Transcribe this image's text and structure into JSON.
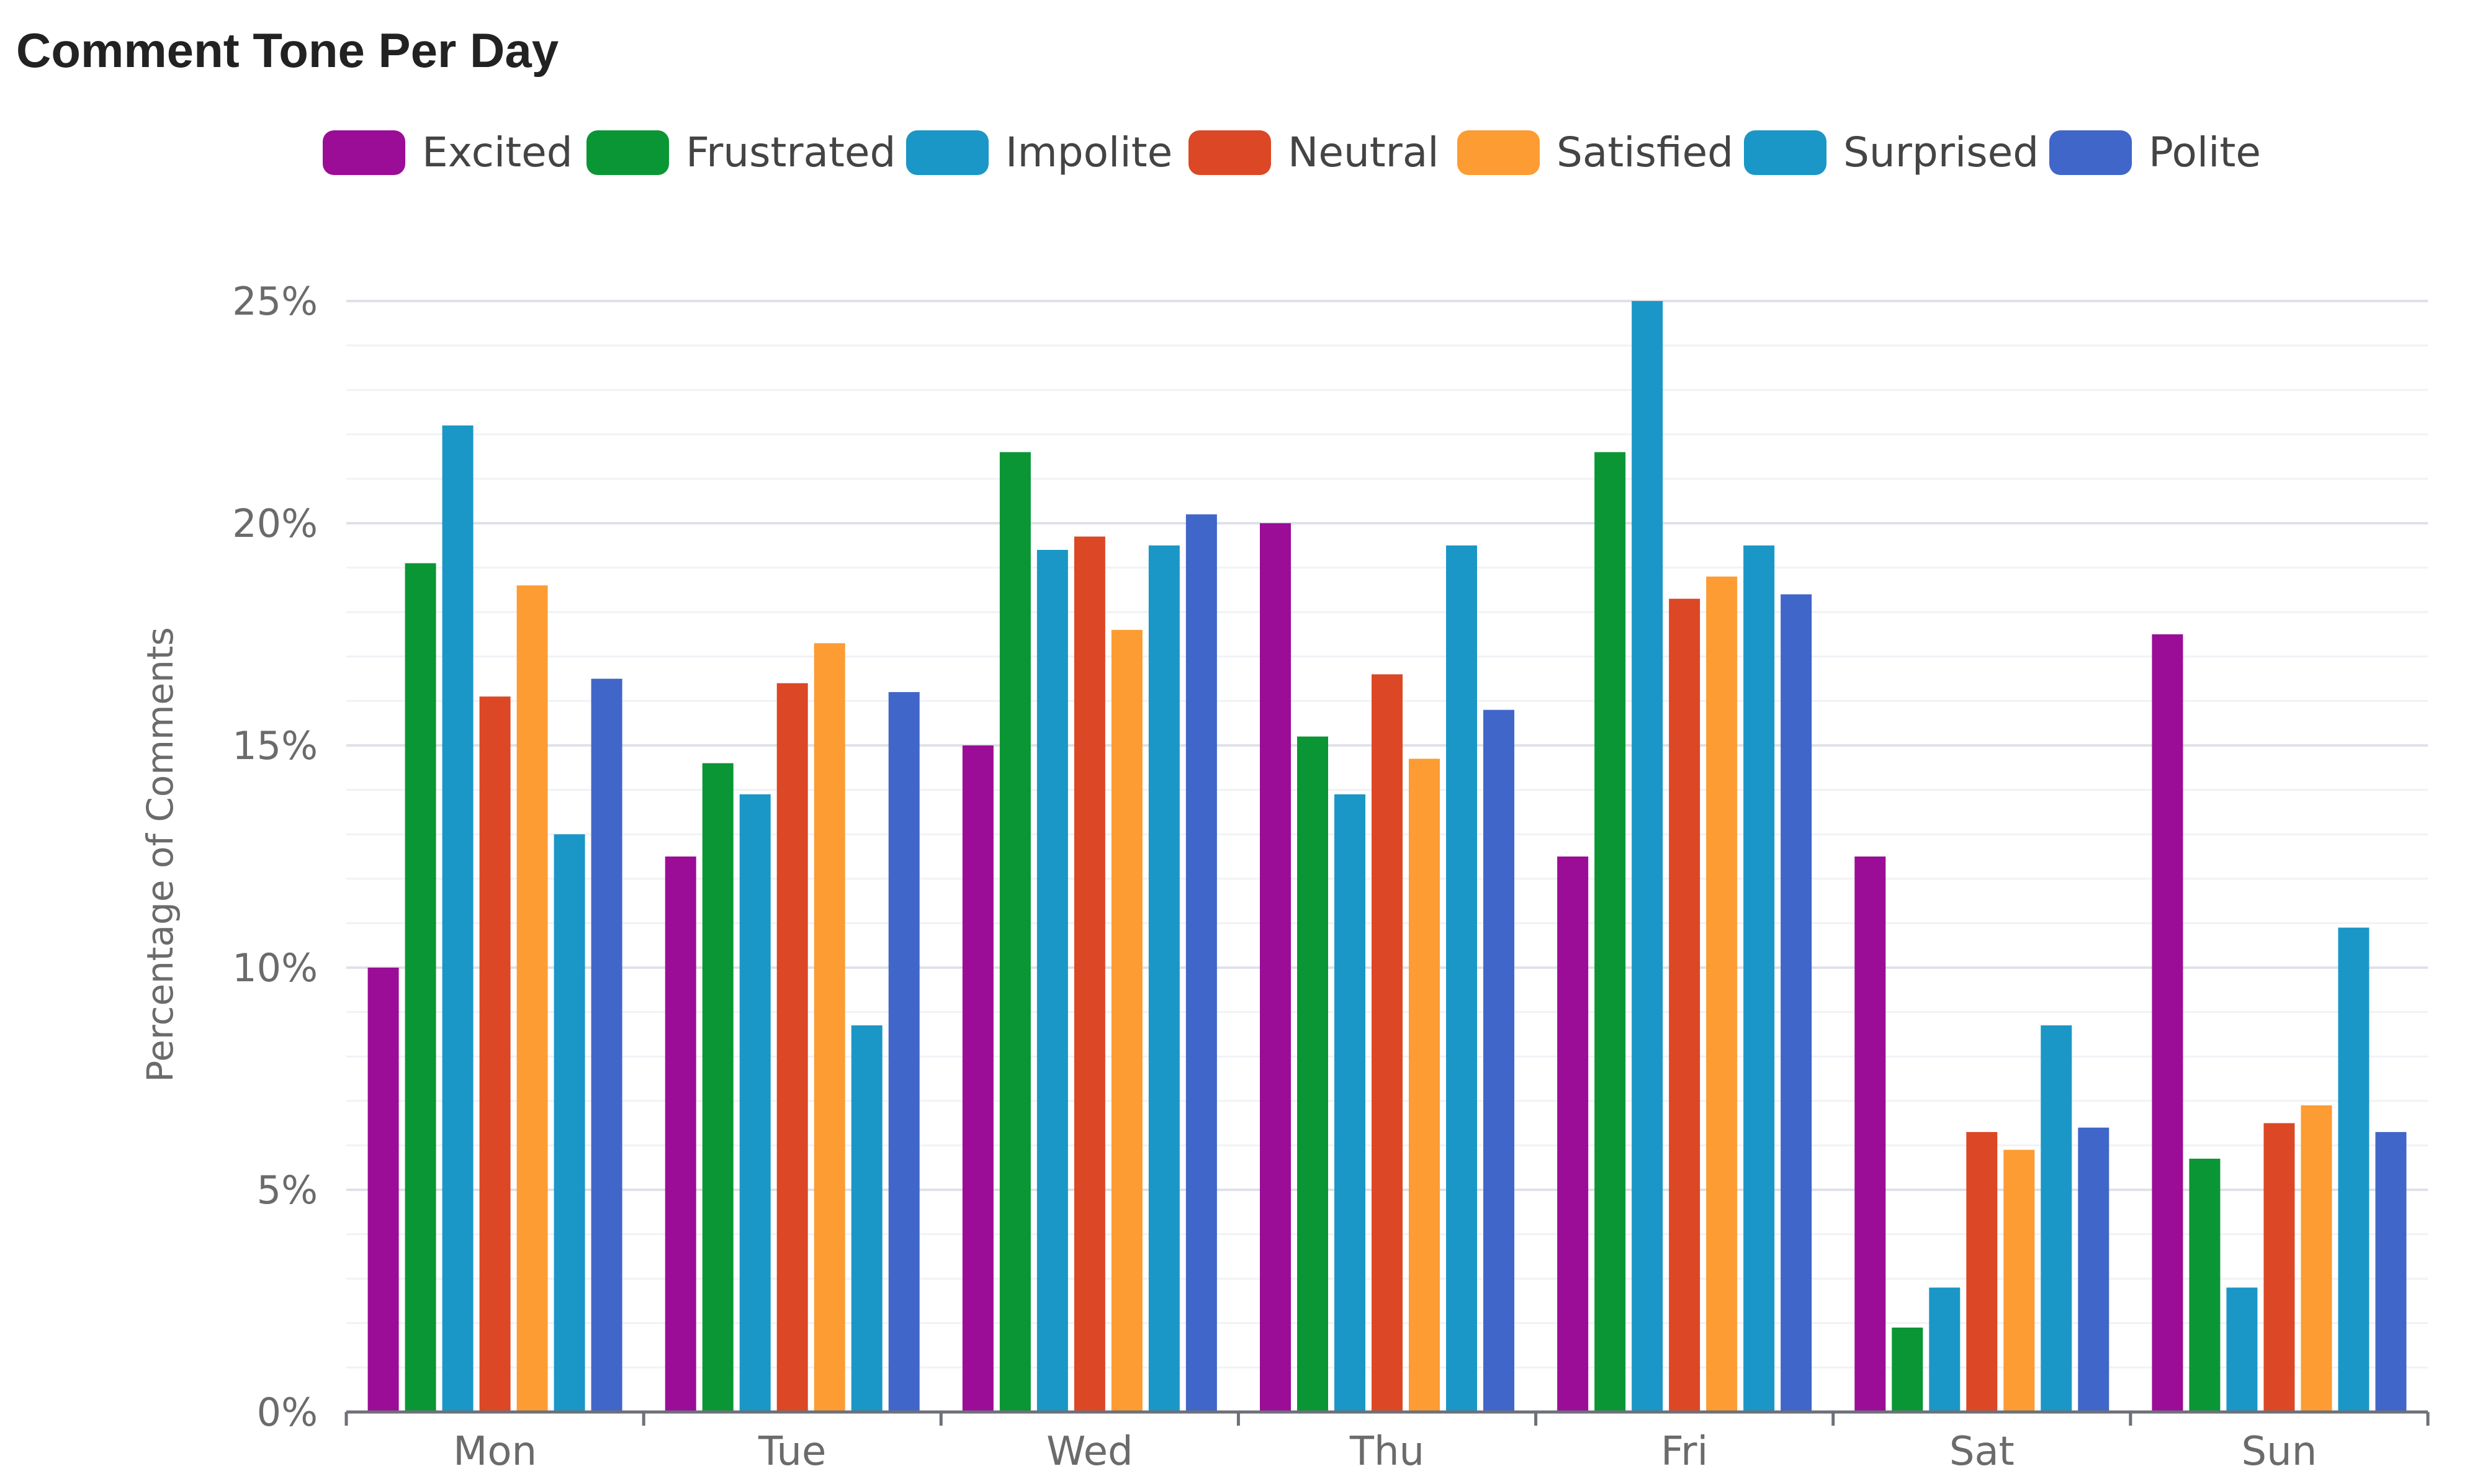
{
  "chart_data": {
    "type": "bar",
    "title": "Comment Tone Per Day",
    "xlabel": "",
    "ylabel": "Percentage of Comments",
    "ylim": [
      0,
      25
    ],
    "yticks": [
      0,
      5,
      10,
      15,
      20,
      25
    ],
    "ytick_suffix": "%",
    "grid": true,
    "legend_position": "top",
    "categories": [
      "Mon",
      "Tue",
      "Wed",
      "Thu",
      "Fri",
      "Sat",
      "Sun"
    ],
    "series": [
      {
        "name": "Excited",
        "color": "#9b0d96",
        "values": [
          10.0,
          12.5,
          15.0,
          20.0,
          12.5,
          12.5,
          17.5
        ]
      },
      {
        "name": "Frustrated",
        "color": "#0a9634",
        "values": [
          19.1,
          14.6,
          21.6,
          15.2,
          21.6,
          1.9,
          5.7
        ]
      },
      {
        "name": "Impolite",
        "color": "#1a97c6",
        "values": [
          22.2,
          13.9,
          19.4,
          13.9,
          25.0,
          2.8,
          2.8
        ]
      },
      {
        "name": "Neutral",
        "color": "#dc4725",
        "values": [
          16.1,
          16.4,
          19.7,
          16.6,
          18.3,
          6.3,
          6.5
        ]
      },
      {
        "name": "Satisfied",
        "color": "#fc9c33",
        "values": [
          18.6,
          17.3,
          17.6,
          14.7,
          18.8,
          5.9,
          6.9
        ]
      },
      {
        "name": "Surprised",
        "color": "#1a97c6",
        "values": [
          13.0,
          8.7,
          19.5,
          19.5,
          19.5,
          8.7,
          10.9
        ]
      },
      {
        "name": "Polite",
        "color": "#4166c9",
        "values": [
          16.5,
          16.2,
          20.2,
          15.8,
          18.4,
          6.4,
          6.3
        ]
      }
    ]
  }
}
